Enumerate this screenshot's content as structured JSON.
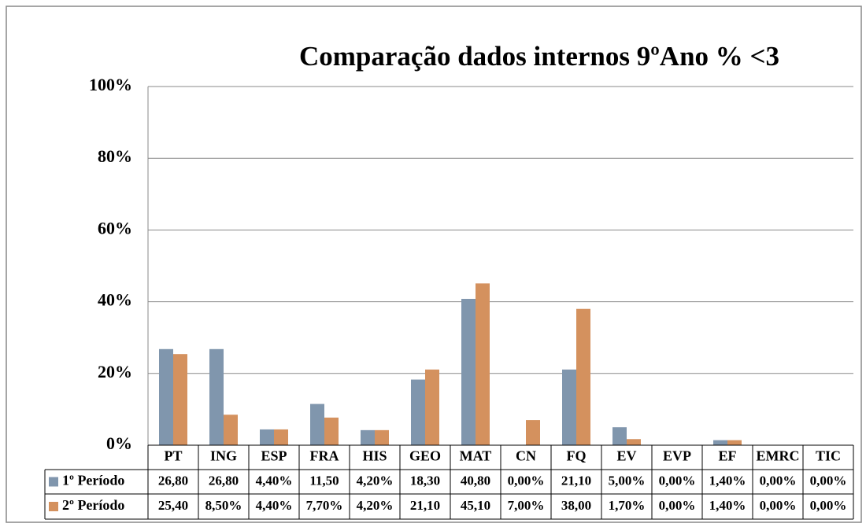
{
  "chart_data": {
    "type": "bar",
    "title": "Comparação dados internos 9ºAno % <3",
    "categories": [
      "PT",
      "ING",
      "ESP",
      "FRA",
      "HIS",
      "GEO",
      "MAT",
      "CN",
      "FQ",
      "EV",
      "EVP",
      "EF",
      "EMRC",
      "TIC"
    ],
    "series": [
      {
        "name": "1º Período",
        "color": "#8096ad",
        "values": [
          26.8,
          26.8,
          4.4,
          11.5,
          4.2,
          18.3,
          40.8,
          0,
          21.1,
          5.0,
          0,
          1.4,
          0,
          0
        ],
        "value_labels": [
          "26,80",
          "26,80",
          "4,40%",
          "11,50",
          "4,20%",
          "18,30",
          "40,80",
          "0,00%",
          "21,10",
          "5,00%",
          "0,00%",
          "1,40%",
          "0,00%",
          "0,00%"
        ]
      },
      {
        "name": "2º Período",
        "color": "#d4915e",
        "values": [
          25.4,
          8.5,
          4.4,
          7.7,
          4.2,
          21.1,
          45.1,
          7.0,
          38.0,
          1.7,
          0,
          1.4,
          0,
          0
        ],
        "value_labels": [
          "25,40",
          "8,50%",
          "4,40%",
          "7,70%",
          "4,20%",
          "21,10",
          "45,10",
          "7,00%",
          "38,00",
          "1,70%",
          "0,00%",
          "1,40%",
          "0,00%",
          "0,00%"
        ]
      }
    ],
    "ylim": [
      0,
      100
    ],
    "yticks": [
      {
        "value": 0,
        "label": "0%"
      },
      {
        "value": 20,
        "label": "20%"
      },
      {
        "value": 40,
        "label": "40%"
      },
      {
        "value": 60,
        "label": "60%"
      },
      {
        "value": 80,
        "label": "80%"
      },
      {
        "value": 100,
        "label": "100%"
      }
    ],
    "grid": true
  }
}
